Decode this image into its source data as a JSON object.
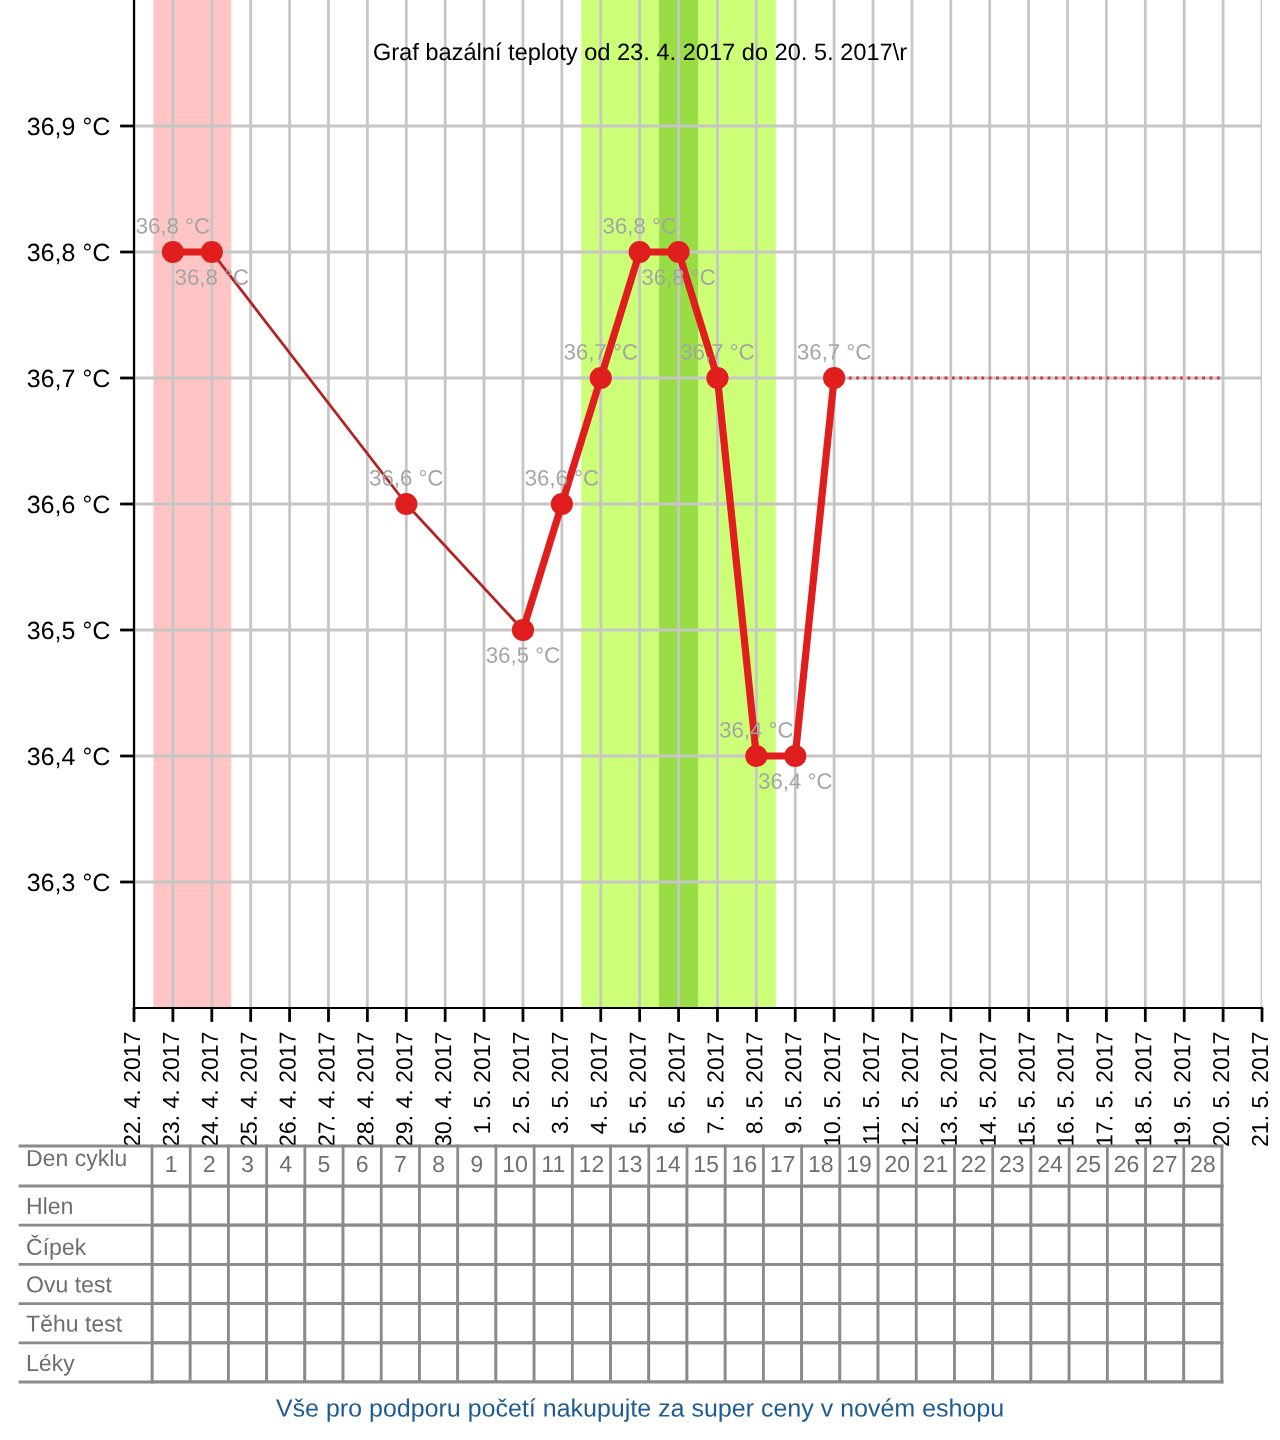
{
  "chart_data": [
    {
      "type": "line",
      "title": "Graf bazální teploty od 23. 4. 2017 do 20. 5. 2017\\r",
      "series": [
        {
          "color": "#e01e1e",
          "marker": "circle",
          "line_style": "solid",
          "x": [
            "2017-04-23",
            "2017-04-24",
            "2017-04-25",
            "2017-04-26",
            "2017-04-27",
            "2017-04-28",
            "2017-04-29",
            "2017-04-30",
            "2017-05-01",
            "2017-05-02",
            "2017-05-03",
            "2017-05-04",
            "2017-05-05",
            "2017-05-06",
            "2017-05-07",
            "2017-05-08",
            "2017-05-09",
            "2017-05-10"
          ],
          "values": [
            36.8,
            36.8,
            null,
            null,
            null,
            null,
            36.6,
            null,
            null,
            36.5,
            36.6,
            36.7,
            36.8,
            36.8,
            36.7,
            36.4,
            36.4,
            36.7
          ],
          "value_labels": [
            "36,8 °C",
            "36,8 °C",
            null,
            null,
            null,
            null,
            "36,6 °C",
            null,
            null,
            "36,5 °C",
            "36,6 °C",
            "36,7 °C",
            "36,8 °C",
            "36,8 °C",
            "36,7 °C",
            "36,4 °C",
            "36,4 °C",
            "36,7 °C"
          ]
        },
        {
          "color": "#b42222",
          "marker": "none",
          "line_style": "solid",
          "x": [
            "2017-04-24",
            "2017-04-29",
            "2017-05-02"
          ],
          "values": [
            36.8,
            36.6,
            36.5
          ]
        },
        {
          "color": "#d23a3a",
          "marker": "none",
          "line_style": "dotted",
          "x": [
            "2017-05-10",
            "2017-05-20"
          ],
          "values": [
            36.7,
            36.7
          ]
        }
      ],
      "xlim": [
        "2017-04-22",
        "2017-05-21"
      ],
      "xticks": [
        {
          "value": "2017-04-22",
          "label": "22. 4. 2017"
        },
        {
          "value": "2017-04-23",
          "label": "23. 4. 2017"
        },
        {
          "value": "2017-04-24",
          "label": "24. 4. 2017"
        },
        {
          "value": "2017-04-25",
          "label": "25. 4. 2017"
        },
        {
          "value": "2017-04-26",
          "label": "26. 4. 2017"
        },
        {
          "value": "2017-04-27",
          "label": "27. 4. 2017"
        },
        {
          "value": "2017-04-28",
          "label": "28. 4. 2017"
        },
        {
          "value": "2017-04-29",
          "label": "29. 4. 2017"
        },
        {
          "value": "2017-04-30",
          "label": "30. 4. 2017"
        },
        {
          "value": "2017-05-01",
          "label": "1. 5. 2017"
        },
        {
          "value": "2017-05-02",
          "label": "2. 5. 2017"
        },
        {
          "value": "2017-05-03",
          "label": "3. 5. 2017"
        },
        {
          "value": "2017-05-04",
          "label": "4. 5. 2017"
        },
        {
          "value": "2017-05-05",
          "label": "5. 5. 2017"
        },
        {
          "value": "2017-05-06",
          "label": "6. 5. 2017"
        },
        {
          "value": "2017-05-07",
          "label": "7. 5. 2017"
        },
        {
          "value": "2017-05-08",
          "label": "8. 5. 2017"
        },
        {
          "value": "2017-05-09",
          "label": "9. 5. 2017"
        },
        {
          "value": "2017-05-10",
          "label": "10. 5. 2017"
        },
        {
          "value": "2017-05-11",
          "label": "11. 5. 2017"
        },
        {
          "value": "2017-05-12",
          "label": "12. 5. 2017"
        },
        {
          "value": "2017-05-13",
          "label": "13. 5. 2017"
        },
        {
          "value": "2017-05-14",
          "label": "14. 5. 2017"
        },
        {
          "value": "2017-05-15",
          "label": "15. 5. 2017"
        },
        {
          "value": "2017-05-16",
          "label": "16. 5. 2017"
        },
        {
          "value": "2017-05-17",
          "label": "17. 5. 2017"
        },
        {
          "value": "2017-05-18",
          "label": "18. 5. 2017"
        },
        {
          "value": "2017-05-19",
          "label": "19. 5. 2017"
        },
        {
          "value": "2017-05-20",
          "label": "20. 5. 2017"
        },
        {
          "value": "2017-05-21",
          "label": "21. 5. 2017"
        }
      ],
      "ylim": [
        36.2,
        37.0
      ],
      "yticks": [
        {
          "value": 36.3,
          "label": "36,3 °C"
        },
        {
          "value": 36.4,
          "label": "36,4 °C"
        },
        {
          "value": 36.5,
          "label": "36,5 °C"
        },
        {
          "value": 36.6,
          "label": "36,6 °C"
        },
        {
          "value": 36.7,
          "label": "36,7 °C"
        },
        {
          "value": 36.8,
          "label": "36,8 °C"
        },
        {
          "value": 36.9,
          "label": "36,9 °C"
        }
      ],
      "grid": true,
      "bands": [
        {
          "axis": "x",
          "from": "2017-04-22T12:00",
          "to": "2017-04-24T12:00",
          "color": "#ffc4c4"
        },
        {
          "axis": "x",
          "from": "2017-05-03T12:00",
          "to": "2017-05-08T12:00",
          "color": "#ccff77"
        },
        {
          "axis": "x",
          "from": "2017-05-05T12:00",
          "to": "2017-05-06T12:00",
          "color": "#99dd44"
        }
      ]
    },
    {
      "type": "heatmap",
      "xlabel": "Den cyklu",
      "categories": [
        "1",
        "2",
        "3",
        "4",
        "5",
        "6",
        "7",
        "8",
        "9",
        "10",
        "11",
        "12",
        "13",
        "14",
        "15",
        "16",
        "17",
        "18",
        "19",
        "20",
        "21",
        "22",
        "23",
        "24",
        "25",
        "26",
        "27",
        "28"
      ],
      "y_categories": [
        "Hlen",
        "Čípek",
        "Ovu test",
        "Těhu test",
        "Léky"
      ],
      "cells": [
        [
          null,
          null,
          null,
          null,
          null,
          null,
          null,
          null,
          null,
          null,
          null,
          null,
          null,
          null,
          null,
          null,
          null,
          null,
          null,
          null,
          null,
          null,
          null,
          null,
          null,
          null,
          null,
          null
        ],
        [
          null,
          null,
          null,
          null,
          null,
          null,
          null,
          null,
          null,
          null,
          null,
          null,
          null,
          null,
          null,
          null,
          null,
          null,
          null,
          null,
          null,
          null,
          null,
          null,
          null,
          null,
          null,
          null
        ],
        [
          null,
          null,
          null,
          null,
          null,
          null,
          null,
          null,
          null,
          null,
          null,
          null,
          null,
          null,
          null,
          null,
          null,
          null,
          null,
          null,
          null,
          null,
          null,
          null,
          null,
          null,
          null,
          null
        ],
        [
          null,
          null,
          null,
          null,
          null,
          null,
          null,
          null,
          null,
          null,
          null,
          null,
          null,
          null,
          null,
          null,
          null,
          null,
          null,
          null,
          null,
          null,
          null,
          null,
          null,
          null,
          null,
          null
        ],
        [
          null,
          null,
          null,
          null,
          null,
          null,
          null,
          null,
          null,
          null,
          null,
          null,
          null,
          null,
          null,
          null,
          null,
          null,
          null,
          null,
          null,
          null,
          null,
          null,
          null,
          null,
          null,
          null
        ]
      ],
      "annotations": [
        "Vše pro podporu početí nakupujte za super ceny v novém eshopu"
      ]
    }
  ]
}
